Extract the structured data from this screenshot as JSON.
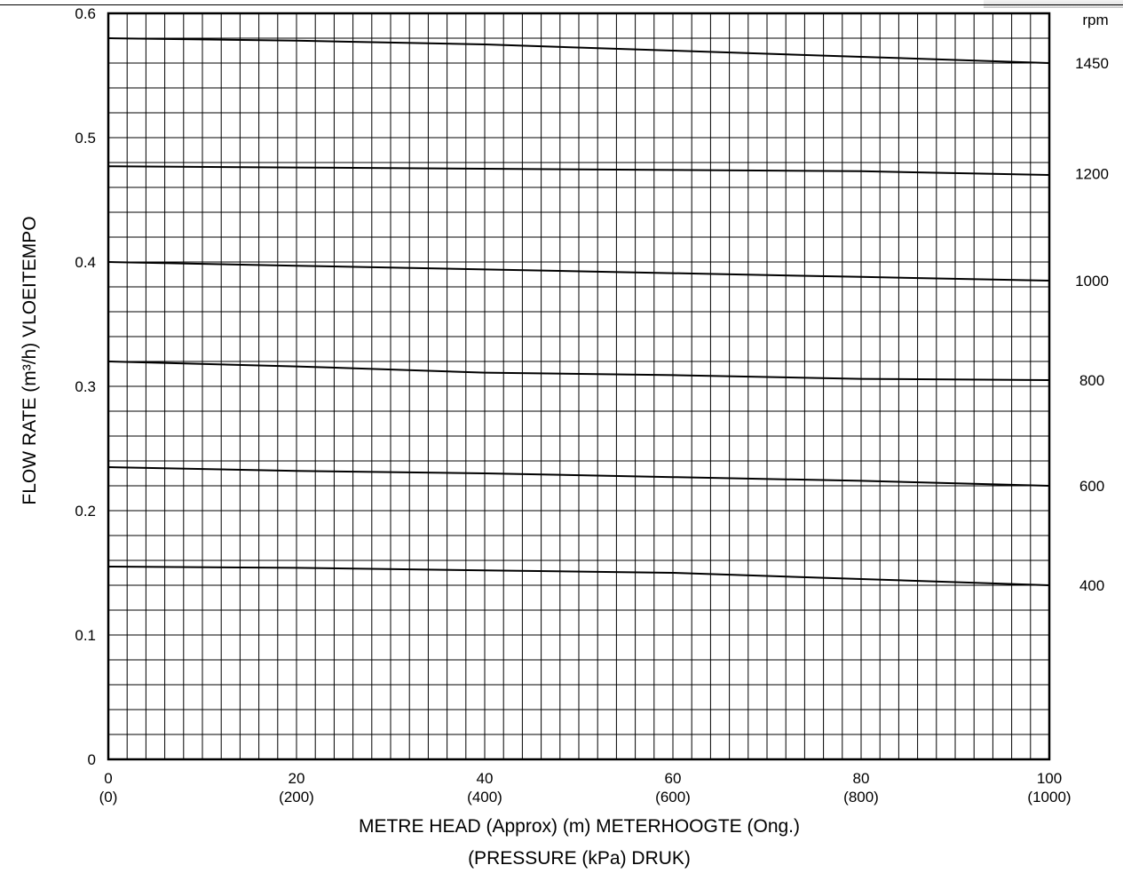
{
  "chart_data": {
    "type": "line",
    "xlabel": "METRE HEAD (Approx) (m) METERHOOGTE (Ong.)",
    "xlabel2": "(PRESSURE (kPa) DRUK)",
    "ylabel": "FLOW RATE (m³/h) VLOEITEMPO",
    "right_axis_label": "rpm",
    "xlim": [
      0,
      100
    ],
    "ylim": [
      0,
      0.6
    ],
    "x_ticks": [
      "0",
      "20",
      "40",
      "60",
      "80",
      "100"
    ],
    "x_ticks_secondary": [
      "(0)",
      "(200)",
      "(400)",
      "(600)",
      "(800)",
      "(1000)"
    ],
    "y_ticks": [
      "0",
      "0.1",
      "0.2",
      "0.3",
      "0.4",
      "0.5",
      "0.6"
    ],
    "grid": true,
    "series": [
      {
        "name": "1450",
        "x": [
          0,
          20,
          40,
          60,
          80,
          100
        ],
        "values": [
          0.58,
          0.578,
          0.575,
          0.57,
          0.565,
          0.56
        ]
      },
      {
        "name": "1200",
        "x": [
          0,
          20,
          40,
          60,
          80,
          100
        ],
        "values": [
          0.477,
          0.476,
          0.475,
          0.474,
          0.473,
          0.47
        ]
      },
      {
        "name": "1000",
        "x": [
          0,
          20,
          40,
          60,
          80,
          100
        ],
        "values": [
          0.4,
          0.397,
          0.394,
          0.391,
          0.388,
          0.385
        ]
      },
      {
        "name": "800",
        "x": [
          0,
          20,
          40,
          60,
          80,
          100
        ],
        "values": [
          0.32,
          0.316,
          0.311,
          0.309,
          0.306,
          0.305
        ]
      },
      {
        "name": "600",
        "x": [
          0,
          20,
          40,
          60,
          80,
          100
        ],
        "values": [
          0.235,
          0.232,
          0.23,
          0.227,
          0.224,
          0.22
        ]
      },
      {
        "name": "400",
        "x": [
          0,
          20,
          40,
          60,
          80,
          100
        ],
        "values": [
          0.155,
          0.154,
          0.152,
          0.15,
          0.145,
          0.14
        ]
      }
    ],
    "right_labels": [
      "1450",
      "1200",
      "1000",
      "800",
      "600",
      "400"
    ],
    "right_labels_y": [
      0.56,
      0.471,
      0.385,
      0.305,
      0.22,
      0.14
    ]
  }
}
